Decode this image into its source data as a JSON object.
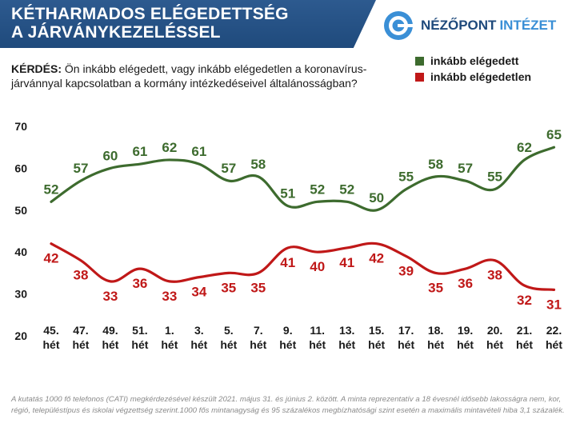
{
  "header": {
    "title_line1": "KÉTHARMADOS ELÉGEDETTSÉG",
    "title_line2": "A JÁRVÁNYKEZELÉSSEL",
    "logo_part1": "NÉZŐPONT",
    "logo_part2": "INTÉZET"
  },
  "question": {
    "label": "KÉRDÉS:",
    "text": " Ön inkább elégedett, vagy inkább elégedetlen a koronavírus-járvánnyal kapcsolatban a kormány intézkedéseivel általánosságban?"
  },
  "footnote": "A kutatás 1000 fő telefonos (CATI) megkérdezésével készült 2021. május 31. és június 2. között. A minta reprezentatív a 18 évesnél idősebb lakosságra nem, kor, régió, településtípus és iskolai végzettség szerint.1000 fős mintanagyság és 95 százalékos megbízhatósági szint esetén a maximális mintavételi hiba 3,1 százalék.",
  "chart_data": {
    "type": "line",
    "categories": [
      [
        "45.",
        "hét"
      ],
      [
        "47.",
        "hét"
      ],
      [
        "49.",
        "hét"
      ],
      [
        "51.",
        "hét"
      ],
      [
        "1.",
        "hét"
      ],
      [
        "3.",
        "hét"
      ],
      [
        "5.",
        "hét"
      ],
      [
        "7.",
        "hét"
      ],
      [
        "9.",
        "hét"
      ],
      [
        "11.",
        "hét"
      ],
      [
        "13.",
        "hét"
      ],
      [
        "15.",
        "hét"
      ],
      [
        "17.",
        "hét"
      ],
      [
        "18.",
        "hét"
      ],
      [
        "19.",
        "hét"
      ],
      [
        "20.",
        "hét"
      ],
      [
        "21.",
        "hét"
      ],
      [
        "22.",
        "hét"
      ]
    ],
    "yticks": [
      20,
      30,
      40,
      50,
      60,
      70
    ],
    "ylim": [
      20,
      70
    ],
    "smooth": true,
    "grid": false,
    "legend_position": "top-right",
    "series": [
      {
        "name": "inkább elégedett",
        "color": "#3d6b2e",
        "values": [
          52,
          57,
          60,
          61,
          62,
          61,
          57,
          58,
          51,
          52,
          52,
          50,
          55,
          58,
          57,
          55,
          62,
          65
        ],
        "label_position": "above"
      },
      {
        "name": "inkább elégedetlen",
        "color": "#c01818",
        "values": [
          42,
          38,
          33,
          36,
          33,
          34,
          35,
          35,
          41,
          40,
          41,
          42,
          39,
          35,
          36,
          38,
          32,
          31
        ],
        "label_position": "below"
      }
    ]
  }
}
